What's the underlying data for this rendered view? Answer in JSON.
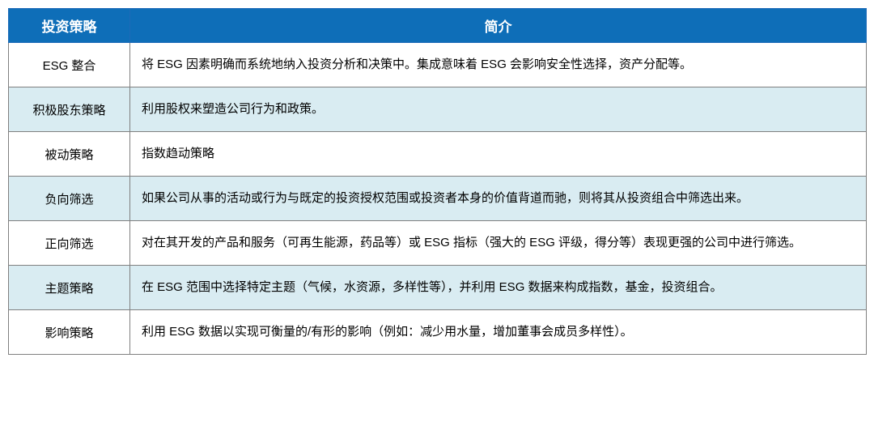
{
  "table": {
    "header_bg": "#0e6eb8",
    "alt_row_bg": "#d9ecf2",
    "row_bg": "#ffffff",
    "border_color": "#808080",
    "header_border": "#1e6bb8",
    "columns": [
      "投资策略",
      "简介"
    ],
    "rows": [
      {
        "strategy": "ESG 整合",
        "desc": "将 ESG 因素明确而系统地纳入投资分析和决策中。集成意味着 ESG 会影响安全性选择，资产分配等。",
        "shaded": false
      },
      {
        "strategy": "积极股东策略",
        "desc": "利用股权来塑造公司行为和政策。",
        "shaded": true
      },
      {
        "strategy": "被动策略",
        "desc": "指数趋动策略",
        "shaded": false
      },
      {
        "strategy": "负向筛选",
        "desc": "如果公司从事的活动或行为与既定的投资授权范围或投资者本身的价值背道而驰，则将其从投资组合中筛选出来。",
        "shaded": true
      },
      {
        "strategy": "正向筛选",
        "desc": "对在其开发的产品和服务（可再生能源，药品等）或 ESG 指标（强大的 ESG 评级，得分等）表现更强的公司中进行筛选。",
        "shaded": false
      },
      {
        "strategy": "主题策略",
        "desc": "在 ESG 范围中选择特定主题（气候，水资源，多样性等），并利用 ESG 数据来构成指数，基金，投资组合。",
        "shaded": true
      },
      {
        "strategy": "影响策略",
        "desc": "利用 ESG 数据以实现可衡量的/有形的影响（例如：减少用水量，增加董事会成员多样性）。",
        "shaded": false
      }
    ]
  }
}
